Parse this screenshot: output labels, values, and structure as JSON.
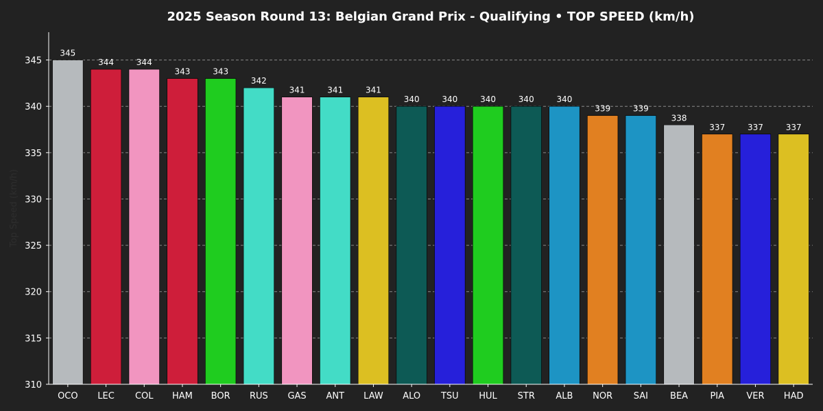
{
  "chart_data": {
    "type": "bar",
    "title": "2025 Season Round 13: Belgian Grand Prix - Qualifying  •  TOP SPEED (km/h)",
    "xlabel": "",
    "ylabel": "Top Speed (km/h)",
    "ylim": [
      310,
      348
    ],
    "yticks": [
      310,
      315,
      320,
      325,
      330,
      335,
      340,
      345
    ],
    "grid": "horizontal dashed",
    "categories": [
      "OCO",
      "LEC",
      "COL",
      "HAM",
      "BOR",
      "RUS",
      "GAS",
      "ANT",
      "LAW",
      "ALO",
      "TSU",
      "HUL",
      "STR",
      "ALB",
      "NOR",
      "SAI",
      "BEA",
      "PIA",
      "VER",
      "HAD"
    ],
    "values": [
      345,
      344,
      344,
      343,
      343,
      342,
      341,
      341,
      341,
      340,
      340,
      340,
      340,
      340,
      339,
      339,
      338,
      337,
      337,
      337
    ],
    "bar_colors": [
      "#B6BABD",
      "#CE1E3A",
      "#F195C0",
      "#CE1E3A",
      "#1FCC1F",
      "#43DCC6",
      "#F195C0",
      "#43DCC6",
      "#DCBF22",
      "#0D5A55",
      "#2620DA",
      "#1FCC1F",
      "#0D5A55",
      "#1D94C4",
      "#E18021",
      "#1D94C4",
      "#B6BABD",
      "#E18021",
      "#2620DA",
      "#DCBF22"
    ]
  },
  "colors": {
    "background": "#222222",
    "text": "#FFFFFF",
    "grid": "#8A8A8A",
    "axis": "#FFFFFF",
    "ylabel": "#2E2E2E"
  }
}
